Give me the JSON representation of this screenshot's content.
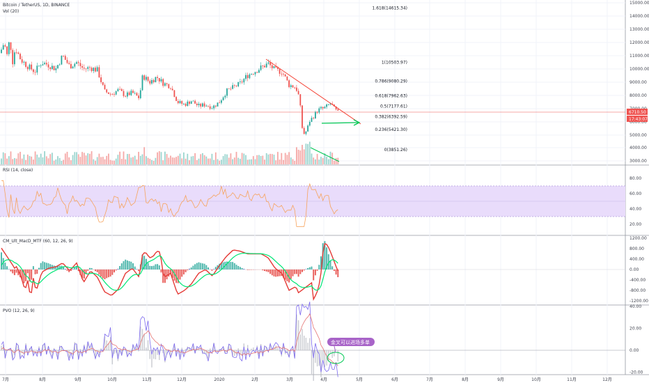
{
  "main_pane": {
    "symbol_title": "Bitcoin / TetherUS, 1D, BINANCE",
    "volume_label": "Vol (20)",
    "price_axis": [
      "15000.00",
      "14000.00",
      "13000.00",
      "12000.00",
      "11000.00",
      "10000.00",
      "9000.00",
      "8000.00",
      "7000.00",
      "6000.00",
      "5000.00",
      "4000.00",
      "3000.00"
    ],
    "last_price_tag": "6710.50",
    "countdown_tag": "17:43:07",
    "fib_levels": [
      {
        "label": "1.618(14615.34)",
        "price": 14615.34
      },
      {
        "label": "1(10503.97)",
        "price": 10503.97
      },
      {
        "label": "0.786(9080.29)",
        "price": 9080.29
      },
      {
        "label": "0.618(7962.63)",
        "price": 7962.63
      },
      {
        "label": "0.5(7177.61)",
        "price": 7177.61
      },
      {
        "label": "0.382(6392.59)",
        "price": 6392.59
      },
      {
        "label": "0.236(5421.30)",
        "price": 5421.3
      },
      {
        "label": "0(3851.26)",
        "price": 3851.26
      }
    ]
  },
  "rsi_pane": {
    "label": "RSI (14, close)",
    "axis": [
      "80.00",
      "60.00",
      "40.00",
      "20.00"
    ]
  },
  "macd_pane": {
    "label": "CM_Ult_MacD_MTF (60, 12, 26, 9)",
    "axis": [
      "1200.00",
      "800.00",
      "400.00",
      "0.00",
      "-400.00",
      "-800.00",
      "-1200.00"
    ]
  },
  "pvo_pane": {
    "label": "PVO (12, 26, 9)",
    "axis": [
      "40.00",
      "20.00",
      "0.00",
      "-20.00"
    ],
    "annotation": "金叉可以进场多单"
  },
  "time_axis": [
    "7月",
    "8月",
    "9月",
    "10月",
    "11月",
    "12月",
    "2020",
    "2月",
    "3月",
    "4月",
    "5月",
    "6月",
    "7月",
    "8月",
    "9月",
    "10月",
    "11月",
    "12月"
  ],
  "colors": {
    "up": "#26a69a",
    "down": "#ef5350",
    "rsi_line": "#f7a35c",
    "rsi_band": "#e9dcfb",
    "trendline": "#f44336",
    "arrow": "#00c853",
    "annotation_bg": "#a864c8",
    "macd_up_line": "#00e676",
    "macd_down_line": "#e53935",
    "pvo_line": "#7b68ee",
    "pvo_signal": "#e57373"
  }
}
